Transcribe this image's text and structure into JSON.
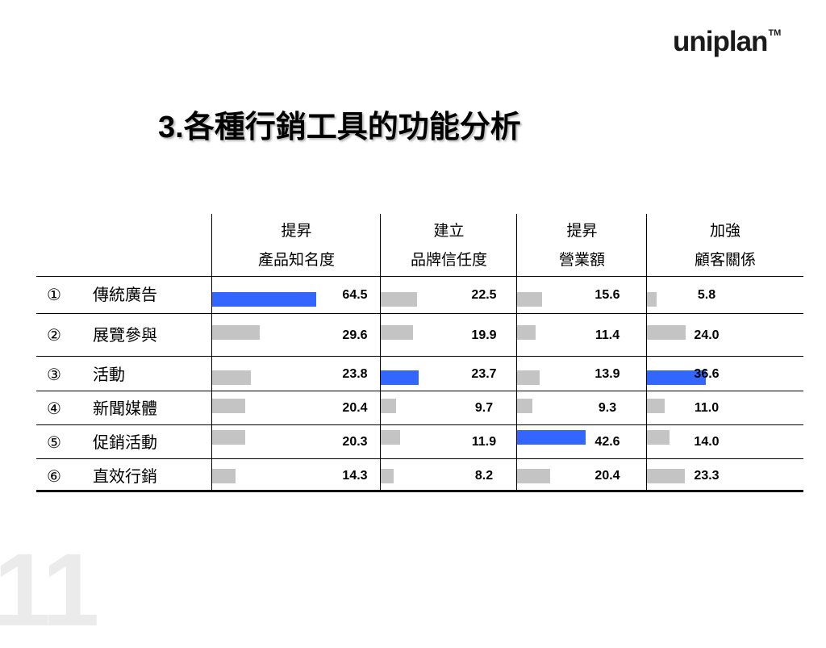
{
  "logo": {
    "text": "uniplan",
    "tm": "TM"
  },
  "title": {
    "number": "3.",
    "text": "各種行銷工具的功能分析"
  },
  "watermark": "11",
  "colors": {
    "highlight": "#3366ff",
    "normal": "#c4c4c4"
  },
  "chart_data": {
    "type": "table",
    "columns": [
      {
        "line1": "提昇",
        "line2": "產品知名度"
      },
      {
        "line1": "建立",
        "line2": "品牌信任度"
      },
      {
        "line1": "提昇",
        "line2": "營業額"
      },
      {
        "line1": "加強",
        "line2": "顧客關係"
      }
    ],
    "rows": [
      {
        "num": "①",
        "label": "傳統廣告",
        "values": [
          64.5,
          22.5,
          15.6,
          5.8
        ],
        "labels": [
          "64.5",
          "22.5",
          "15.6",
          "5.8"
        ],
        "highlight": [
          true,
          false,
          false,
          false
        ]
      },
      {
        "num": "②",
        "label": "展覽參與",
        "values": [
          29.6,
          19.9,
          11.4,
          24.0
        ],
        "labels": [
          "29.6",
          "19.9",
          "11.4",
          "24.0"
        ],
        "highlight": [
          false,
          false,
          false,
          false
        ]
      },
      {
        "num": "③",
        "label": "活動",
        "values": [
          23.8,
          23.7,
          13.9,
          36.6
        ],
        "labels": [
          "23.8",
          "23.7",
          "13.9",
          "36.6"
        ],
        "highlight": [
          false,
          true,
          false,
          true
        ]
      },
      {
        "num": "④",
        "label": "新聞媒體",
        "values": [
          20.4,
          9.7,
          9.3,
          11.0
        ],
        "labels": [
          "20.4",
          "9.7",
          "9.3",
          "11.0"
        ],
        "highlight": [
          false,
          false,
          false,
          false
        ]
      },
      {
        "num": "⑤",
        "label": "促銷活動",
        "values": [
          20.3,
          11.9,
          42.6,
          14.0
        ],
        "labels": [
          "20.3",
          "11.9",
          "42.6",
          "14.0"
        ],
        "highlight": [
          false,
          false,
          true,
          false
        ]
      },
      {
        "num": "⑥",
        "label": "直效行銷",
        "values": [
          14.3,
          8.2,
          20.4,
          23.3
        ],
        "labels": [
          "14.3",
          "8.2",
          "20.4",
          "23.3"
        ],
        "highlight": [
          false,
          false,
          false,
          false
        ]
      }
    ]
  }
}
